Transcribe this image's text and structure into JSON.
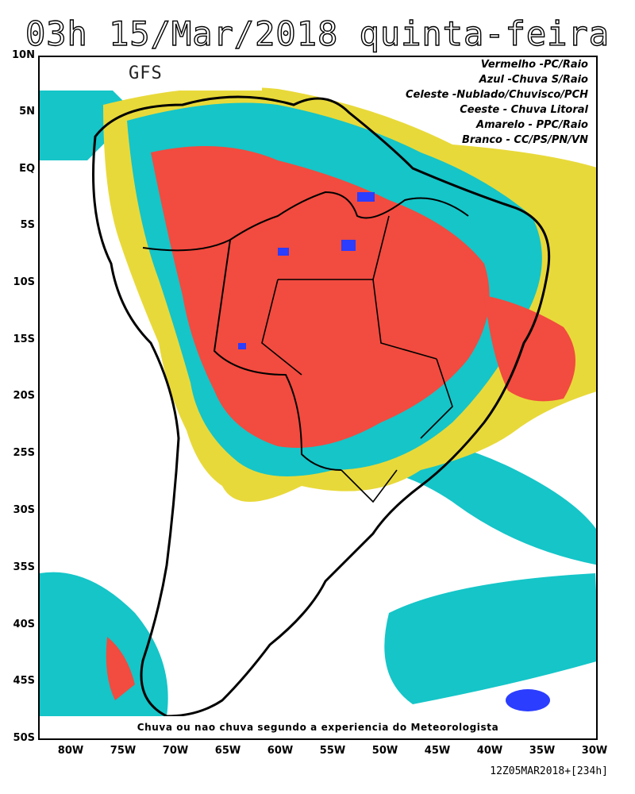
{
  "title": "03h 15/Mar/2018 quinta-feira",
  "model_label": "GFS",
  "legend": [
    {
      "text": "Vermelho -PC/Raio",
      "color": "#f24b3f"
    },
    {
      "text": "Azul -Chuva S/Raio",
      "color": "#2b3dff"
    },
    {
      "text": "Celeste -Nublado/Chuvisco/PCH",
      "color": "#15c5c8"
    },
    {
      "text": "Ceeste - Chuva Litoral",
      "color": "#15c5c8"
    },
    {
      "text": "Amarelo - PPC/Raio",
      "color": "#e8d93a"
    },
    {
      "text": "Branco - CC/PS/PN/VN",
      "color": "#ffffff"
    }
  ],
  "footer_note": "Chuva ou nao chuva segundo a experiencia do Meteorologista",
  "run_info": "12Z05MAR2018+[234h]",
  "lat_labels": [
    "10N",
    "5N",
    "EQ",
    "5S",
    "10S",
    "15S",
    "20S",
    "25S",
    "30S",
    "35S",
    "40S",
    "45S",
    "50S"
  ],
  "lon_labels": [
    "80W",
    "75W",
    "70W",
    "65W",
    "60W",
    "55W",
    "50W",
    "45W",
    "40W",
    "35W",
    "30W"
  ]
}
